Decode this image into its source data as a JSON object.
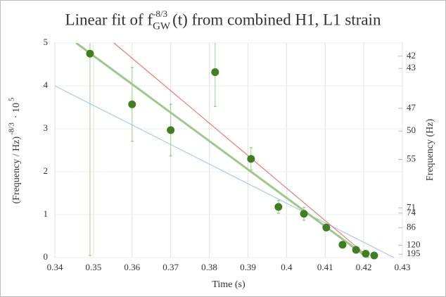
{
  "chart_data": {
    "type": "scatter",
    "title_parts": [
      "Linear fit of f",
      "GW",
      "-8/3",
      "(t)  from combined H1, L1 strain"
    ],
    "x_label": "Time (s)",
    "y_label_parts": [
      "(Frequency / Hz)",
      "-8/3",
      "· 10",
      "5"
    ],
    "y2_label": "Frequency (Hz)",
    "xlim": [
      0.34,
      0.43
    ],
    "xticks": [
      0.34,
      0.35,
      0.36,
      0.37,
      0.38,
      0.39,
      0.4,
      0.41,
      0.42,
      0.43
    ],
    "ylim": [
      0,
      5
    ],
    "yticks": [
      0,
      1,
      2,
      3,
      4,
      5
    ],
    "y2ticks": [
      42,
      43,
      47,
      50,
      55,
      71,
      74,
      86,
      120,
      195
    ],
    "grid": true,
    "points": {
      "color": "#3f7f22",
      "error_color": "#9fd08f",
      "x": [
        0.3491,
        0.36,
        0.37,
        0.3815,
        0.3908,
        0.3979,
        0.4045,
        0.4103,
        0.4145,
        0.418,
        0.4205,
        0.4227
      ],
      "values": [
        4.75,
        3.57,
        2.97,
        4.32,
        2.3,
        1.18,
        1.02,
        0.7,
        0.3,
        0.18,
        0.09,
        0.05
      ],
      "errors": [
        4.7,
        0.86,
        0.6,
        0.8,
        0.26,
        0.15,
        0.15,
        0.05,
        0,
        0,
        0,
        0
      ]
    },
    "lines": [
      {
        "color": "#a9c9ea",
        "width": 1.2,
        "x": [
          0.34,
          0.4278
        ],
        "values": [
          4.0,
          0
        ]
      },
      {
        "color": "#e87a72",
        "width": 1.2,
        "x": [
          0.3553,
          0.4214
        ],
        "values": [
          5,
          0
        ]
      },
      {
        "color": "#9cc98a",
        "width": 3,
        "x": [
          0.3455,
          0.421
        ],
        "values": [
          5,
          0
        ]
      }
    ]
  }
}
